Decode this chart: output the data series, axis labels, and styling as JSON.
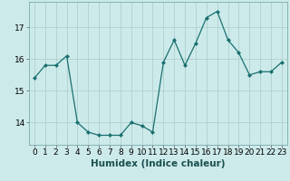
{
  "x": [
    0,
    1,
    2,
    3,
    4,
    5,
    6,
    7,
    8,
    9,
    10,
    11,
    12,
    13,
    14,
    15,
    16,
    17,
    18,
    19,
    20,
    21,
    22,
    23
  ],
  "y": [
    15.4,
    15.8,
    15.8,
    16.1,
    14.0,
    13.7,
    13.6,
    13.6,
    13.6,
    14.0,
    13.9,
    13.7,
    15.9,
    16.6,
    15.8,
    16.5,
    17.3,
    17.5,
    16.6,
    16.2,
    15.5,
    15.6,
    15.6,
    15.9
  ],
  "line_color": "#1a7070",
  "marker": "D",
  "marker_size": 2.0,
  "xlabel": "Humidex (Indice chaleur)",
  "bg_color": "#cdeaea",
  "grid_color": "#aed0d0",
  "ylim": [
    13.3,
    17.8
  ],
  "yticks": [
    14,
    15,
    16,
    17
  ],
  "xticks": [
    0,
    1,
    2,
    3,
    4,
    5,
    6,
    7,
    8,
    9,
    10,
    11,
    12,
    13,
    14,
    15,
    16,
    17,
    18,
    19,
    20,
    21,
    22,
    23
  ],
  "xlim": [
    -0.5,
    23.5
  ],
  "tick_label_size": 6.5,
  "xlabel_size": 7.5
}
